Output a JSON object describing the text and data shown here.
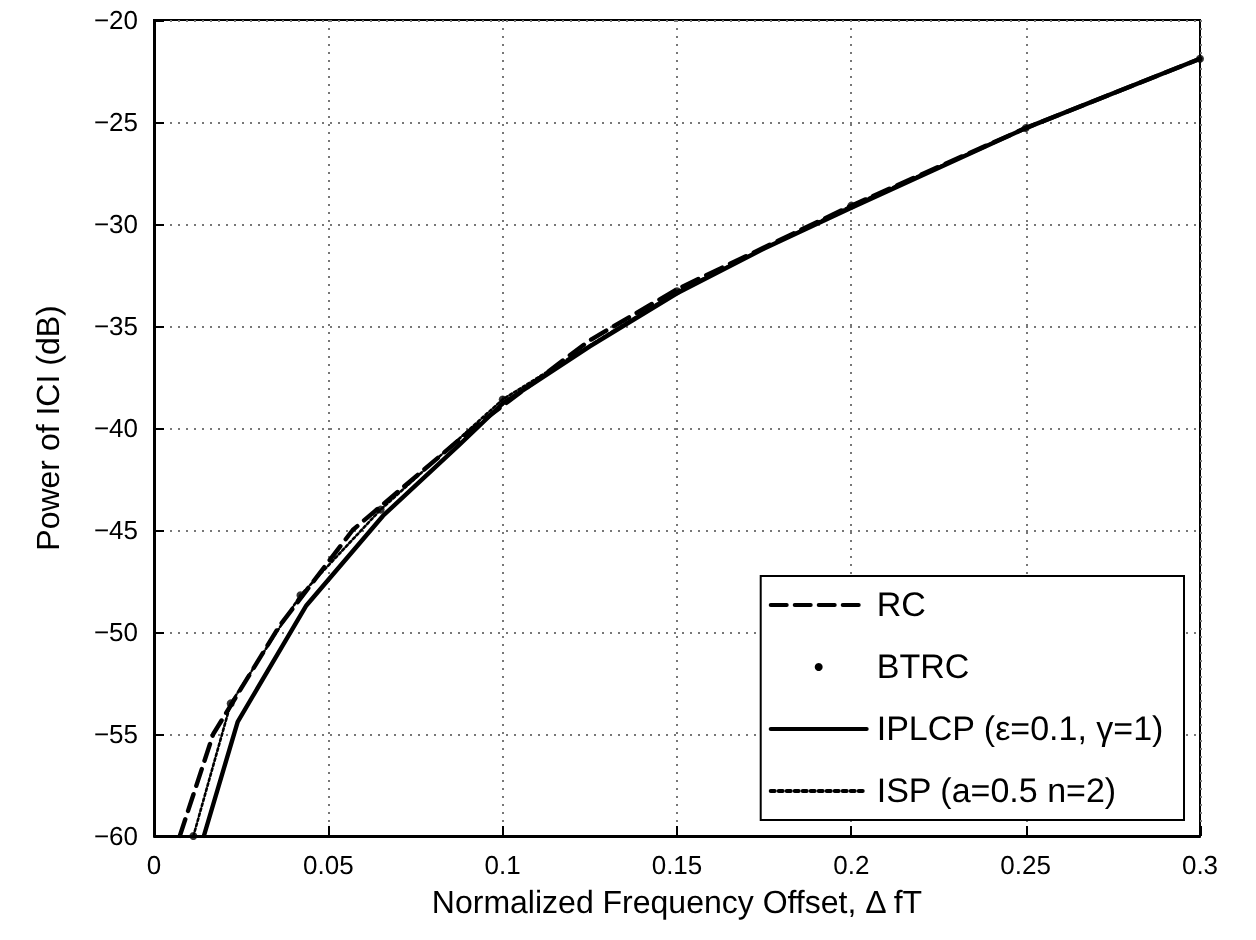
{
  "chart_data": {
    "type": "line",
    "xlabel": "Normalized Frequency Offset, Δ fT",
    "ylabel": "Power of ICI (dB)",
    "xlim": [
      0,
      0.3
    ],
    "xticks": [
      0,
      0.05,
      0.1,
      0.15,
      0.2,
      0.25,
      0.3
    ],
    "ylim": [
      -60,
      -20
    ],
    "yticks": [
      -60,
      -55,
      -50,
      -45,
      -40,
      -35,
      -30,
      -25,
      -20
    ],
    "grid": true,
    "legend": "bottom right",
    "series": [
      {
        "name": "RC",
        "color": "#000000",
        "line_style": "dashed",
        "x": [
          0.0074,
          0.017,
          0.036,
          0.057,
          0.0915,
          0.125,
          0.15,
          0.2,
          0.25,
          0.3
        ],
        "values": [
          -60,
          -55,
          -49.7,
          -45,
          -40,
          -35.7,
          -33.2,
          -29.1,
          -25.3,
          -21.9
        ]
      },
      {
        "name": "BTRC",
        "type": "scatter",
        "marker": "circle",
        "color": "#000000",
        "x": [
          0.0113,
          0.022,
          0.042,
          0.065,
          0.1,
          0.15,
          0.2,
          0.25,
          0.3
        ],
        "values": [
          -60,
          -53.5,
          -48.2,
          -44,
          -38.6,
          -33.3,
          -29.1,
          -25.3,
          -21.9
        ]
      },
      {
        "name": "IPLCP (ε=0.1, γ=1)",
        "color": "#000000",
        "line_style": "solid",
        "x": [
          0.0143,
          0.024,
          0.0437,
          0.0657,
          0.0877,
          0.1,
          0.125,
          0.15,
          0.175,
          0.2,
          0.25,
          0.3
        ],
        "values": [
          -60,
          -54.4,
          -48.7,
          -44.3,
          -40.8,
          -38.8,
          -36,
          -33.4,
          -31.2,
          -29.2,
          -25.3,
          -21.9
        ]
      },
      {
        "name": "ISP (a=0.5 n=2)",
        "color": "#000000",
        "line_style": "dotted",
        "x": [
          0.0113,
          0.022,
          0.042,
          0.065,
          0.1,
          0.15,
          0.2,
          0.25,
          0.3
        ],
        "values": [
          -60,
          -53.5,
          -48.2,
          -44,
          -38.6,
          -33.3,
          -29.1,
          -25.3,
          -21.9
        ]
      }
    ]
  }
}
